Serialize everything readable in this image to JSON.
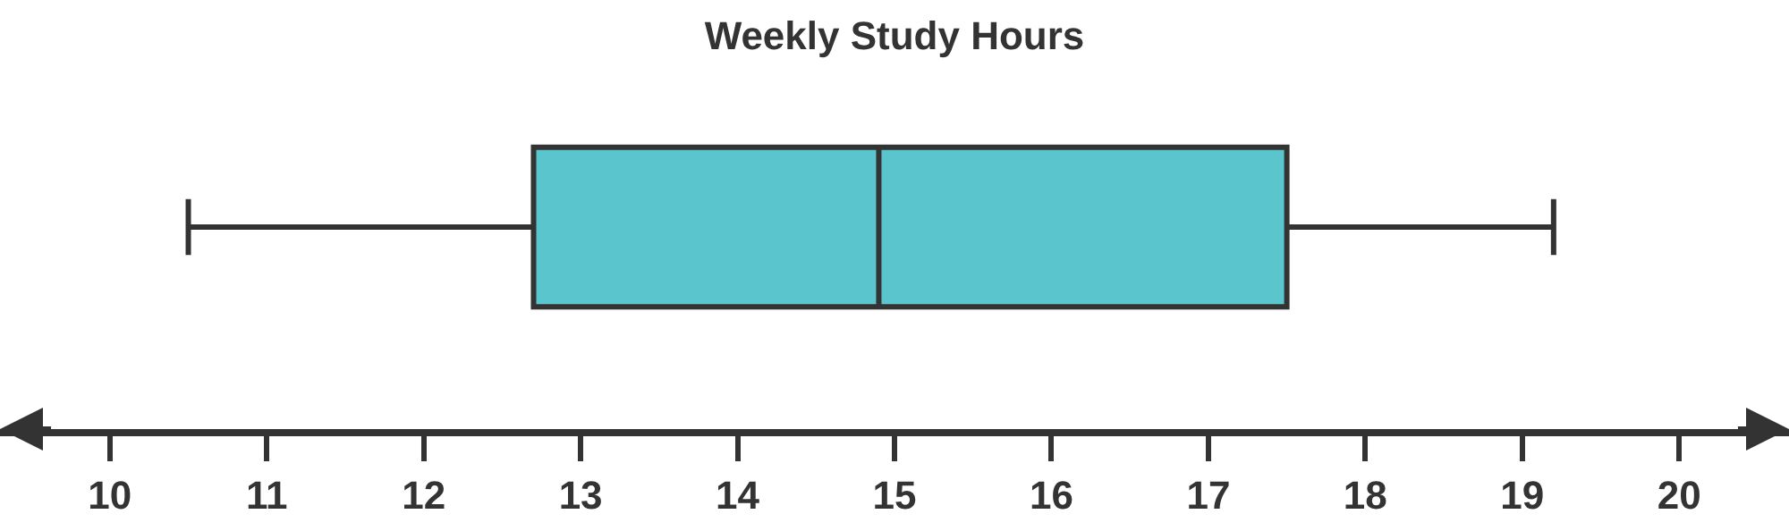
{
  "chart_data": {
    "type": "box",
    "title": "Weekly Study Hours",
    "orientation": "horizontal",
    "categories": [
      null
    ],
    "boxes": [
      {
        "low": 10.5,
        "q1": 12.7,
        "median": 14.9,
        "q3": 17.5,
        "high": 19.2
      }
    ],
    "color": "#5bc5ce",
    "xlim": [
      9.3,
      20.7
    ],
    "xticks": [
      10,
      11,
      12,
      13,
      14,
      15,
      16,
      17,
      18,
      19,
      20
    ],
    "tick_labels": "x"
  }
}
